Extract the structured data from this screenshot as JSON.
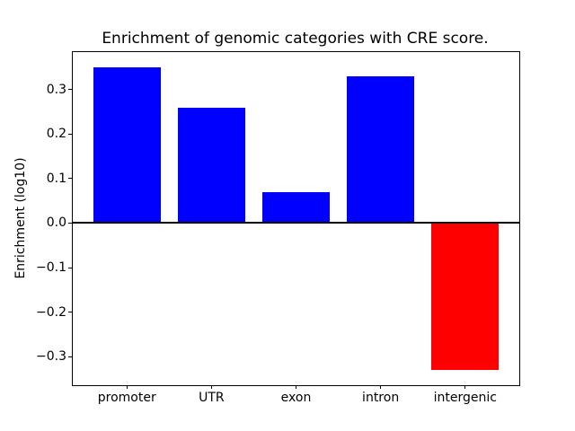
{
  "chart_data": {
    "type": "bar",
    "title": "Enrichment of genomic categories with CRE score.",
    "xlabel": "",
    "ylabel": "Enrichment (log10)",
    "categories": [
      "promoter",
      "UTR",
      "exon",
      "intron",
      "intergenic"
    ],
    "values": [
      0.35,
      0.26,
      0.07,
      0.33,
      -0.33
    ],
    "bar_colors": [
      "#0000ff",
      "#0000ff",
      "#0000ff",
      "#0000ff",
      "#ff0000"
    ],
    "yticks": [
      0.3,
      0.2,
      0.1,
      0.0,
      -0.1,
      -0.2,
      -0.3
    ],
    "ytick_labels": [
      "0.3",
      "0.2",
      "0.1",
      "0.0",
      "−0.1",
      "−0.2",
      "−0.3"
    ],
    "ylim": [
      -0.364,
      0.384
    ],
    "xlim": [
      -0.64,
      4.64
    ],
    "bar_width": 0.8,
    "zero_line": true,
    "grid": false,
    "legend": false,
    "colors": {
      "positive_bar": "#0000ff",
      "negative_bar": "#ff0000",
      "axis": "#000000",
      "background": "#ffffff"
    }
  }
}
